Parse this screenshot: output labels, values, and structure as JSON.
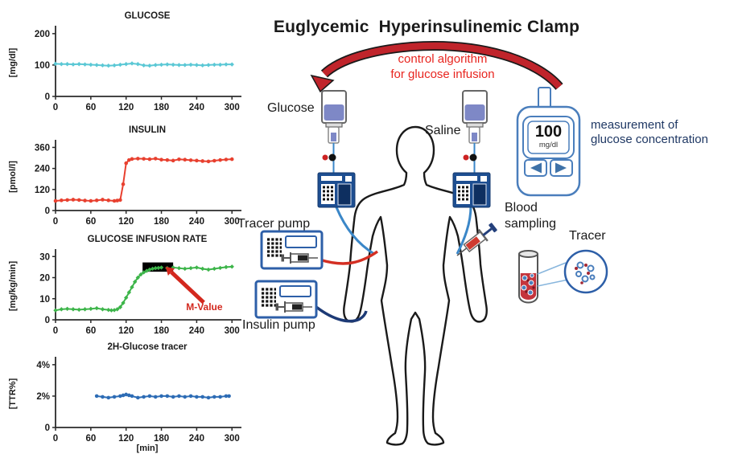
{
  "figure_title": "Euglycemic  Hyperinsulinemic Clamp",
  "control_arrow": {
    "line1": "control algorithm",
    "line2": "for glucose infusion"
  },
  "labels": {
    "glucose_bag": "Glucose",
    "saline_bag": "Saline",
    "tracer_pump": "Tracer pump",
    "insulin_pump": "Insulin pump",
    "blood_sampling": "Blood sampling",
    "tracer": "Tracer",
    "measurement": "measurement of glucose concentration"
  },
  "meter": {
    "value": "100",
    "unit": "mg/dl"
  },
  "colors": {
    "glucose_series": "#5bc8d5",
    "insulin_series": "#e8402f",
    "gir_series": "#3db54a",
    "tracer_series": "#2d6cb5",
    "accent_red": "#c0242b",
    "annotation_red": "#d3281e",
    "navy_text": "#1f3864",
    "device_blue": "#4a7ebc",
    "pump_navy": "#1d4e91",
    "bag_fluid": "#7e88c6"
  },
  "chart_data": [
    {
      "type": "line",
      "title": "GLUCOSE",
      "ylabel": "[mg/dl]",
      "xlabel": "",
      "color": "#5bc8d5",
      "marker": "diamond",
      "xlim": [
        0,
        312
      ],
      "ylim": [
        0,
        215
      ],
      "xticks": [
        0,
        60,
        120,
        180,
        240,
        300
      ],
      "xtick_labels": [
        "0",
        "60",
        "120",
        "180",
        "240",
        "300"
      ],
      "yticks": [
        0,
        100,
        200
      ],
      "ytick_labels": [
        "0",
        "100",
        "200"
      ],
      "x": [
        0,
        10,
        20,
        30,
        40,
        50,
        60,
        70,
        80,
        90,
        100,
        110,
        120,
        130,
        140,
        150,
        160,
        170,
        180,
        190,
        200,
        210,
        220,
        230,
        240,
        250,
        260,
        270,
        280,
        290,
        300
      ],
      "y": [
        104,
        103,
        103,
        102,
        103,
        102,
        101,
        100,
        99,
        98,
        99,
        101,
        103,
        105,
        103,
        99,
        98,
        100,
        101,
        102,
        101,
        100,
        100,
        101,
        100,
        99,
        100,
        101,
        101,
        102,
        102
      ]
    },
    {
      "type": "line",
      "title": "INSULIN",
      "ylabel": "[pmol/l]",
      "xlabel": "",
      "color": "#e8402f",
      "marker": "circle",
      "xlim": [
        0,
        312
      ],
      "ylim": [
        0,
        385
      ],
      "xticks": [
        0,
        60,
        120,
        180,
        240,
        300
      ],
      "xtick_labels": [
        "0",
        "60",
        "120",
        "180",
        "240",
        "300"
      ],
      "yticks": [
        0,
        120,
        240,
        360
      ],
      "ytick_labels": [
        "0",
        "120",
        "240",
        "360"
      ],
      "x": [
        0,
        10,
        20,
        30,
        40,
        50,
        60,
        70,
        80,
        90,
        100,
        105,
        110,
        115,
        120,
        125,
        130,
        140,
        150,
        160,
        170,
        180,
        190,
        200,
        210,
        220,
        230,
        240,
        250,
        260,
        270,
        280,
        290,
        300
      ],
      "y": [
        55,
        58,
        60,
        62,
        60,
        57,
        55,
        58,
        62,
        58,
        55,
        57,
        60,
        150,
        270,
        288,
        294,
        296,
        295,
        293,
        296,
        290,
        288,
        285,
        292,
        290,
        287,
        285,
        282,
        280,
        284,
        288,
        291,
        293
      ]
    },
    {
      "type": "line",
      "title": "GLUCOSE INFUSION RATE",
      "ylabel": "[mg/kg/min]",
      "xlabel": "",
      "color": "#3db54a",
      "marker": "diamond",
      "xlim": [
        0,
        312
      ],
      "ylim": [
        0,
        32
      ],
      "xticks": [
        0,
        60,
        120,
        180,
        240,
        300
      ],
      "xtick_labels": [
        "0",
        "60",
        "120",
        "180",
        "240",
        "300"
      ],
      "yticks": [
        0,
        10,
        20,
        30
      ],
      "ytick_labels": [
        "0",
        "10",
        "20",
        "30"
      ],
      "x": [
        0,
        10,
        20,
        30,
        40,
        50,
        60,
        70,
        80,
        90,
        95,
        100,
        105,
        110,
        115,
        120,
        125,
        130,
        135,
        140,
        145,
        150,
        155,
        160,
        165,
        170,
        175,
        180,
        190,
        200,
        210,
        220,
        230,
        240,
        250,
        260,
        270,
        280,
        290,
        300
      ],
      "y": [
        4.5,
        5,
        5.2,
        5,
        4.8,
        5,
        5.2,
        5.5,
        5,
        4.7,
        4.5,
        4.6,
        5,
        6,
        8,
        10.5,
        13,
        15.5,
        18,
        20,
        21.5,
        22.5,
        23.2,
        23.8,
        24.2,
        24.5,
        24.6,
        24.8,
        24.5,
        24.8,
        24.5,
        24.2,
        24.5,
        24.8,
        24.2,
        23.8,
        24.2,
        24.6,
        25,
        25.2
      ],
      "annotations": {
        "box": {
          "x0": 148,
          "x1": 200,
          "y0": 22.8,
          "y1": 27.2
        },
        "arrow": {
          "tail": [
            252,
            8.2
          ],
          "head": [
            197,
            22.6
          ]
        },
        "label": {
          "text": "M-Value",
          "x": 253,
          "y": 4.6,
          "color": "#d3281e"
        }
      }
    },
    {
      "type": "line",
      "title": "2H-Glucose tracer",
      "ylabel": "[TTR%]",
      "xlabel": "[min]",
      "color": "#2d6cb5",
      "marker": "circle",
      "xlim": [
        0,
        312
      ],
      "ylim": [
        0,
        4.3
      ],
      "xticks": [
        0,
        60,
        120,
        180,
        240,
        300
      ],
      "xtick_labels": [
        "0",
        "60",
        "120",
        "180",
        "240",
        "300"
      ],
      "yticks": [
        0,
        2,
        4
      ],
      "ytick_labels": [
        "0",
        "2%",
        "4%"
      ],
      "x": [
        70,
        80,
        90,
        100,
        110,
        115,
        120,
        125,
        130,
        140,
        150,
        160,
        170,
        180,
        190,
        200,
        210,
        220,
        230,
        240,
        250,
        260,
        270,
        280,
        290,
        295
      ],
      "y": [
        2.0,
        1.95,
        1.9,
        1.95,
        2.0,
        2.05,
        2.1,
        2.05,
        2.0,
        1.9,
        1.95,
        2.0,
        1.95,
        2.0,
        2.0,
        1.95,
        2.0,
        1.95,
        2.0,
        1.95,
        1.95,
        1.9,
        1.95,
        1.95,
        2.0,
        2.0
      ]
    }
  ]
}
